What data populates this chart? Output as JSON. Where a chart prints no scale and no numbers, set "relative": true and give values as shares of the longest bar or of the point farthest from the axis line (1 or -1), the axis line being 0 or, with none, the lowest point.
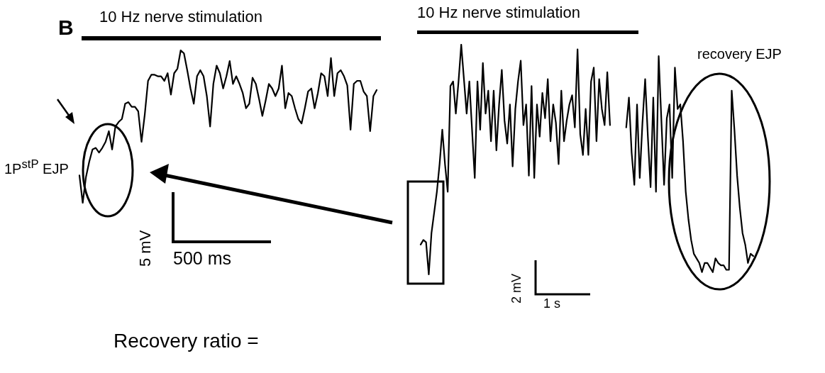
{
  "chart_data": [
    {
      "type": "line",
      "relative": true,
      "tick_labels": false,
      "marker": "none",
      "line_style": "solid",
      "annotations": [
        "B",
        "10 Hz nerve stimulation",
        "1P$^{stP}$ EJP",
        "5 mV",
        "500 ms",
        "Recovery ratio ="
      ],
      "categories": [
        null,
        null,
        null,
        null,
        null,
        null,
        null,
        null,
        null,
        null,
        null,
        null,
        null,
        null,
        null,
        null,
        null,
        null,
        null,
        null,
        null,
        null,
        null,
        null,
        null,
        null,
        null,
        null,
        null,
        null,
        null,
        null,
        null,
        null,
        null,
        null,
        null,
        null,
        null,
        null,
        null,
        null,
        null,
        null,
        null,
        null,
        null,
        null,
        null,
        null,
        null,
        null,
        null,
        null,
        null,
        null,
        null,
        null,
        null,
        null,
        null,
        null,
        null,
        null,
        null,
        null,
        null,
        null,
        null,
        null,
        null,
        null,
        null,
        null,
        null,
        null,
        null,
        null,
        null,
        null,
        null,
        null,
        null,
        null,
        null,
        null,
        null,
        null,
        null,
        null,
        null,
        null
      ],
      "series": [
        {
          "color": "#000000",
          "values": [
            0.18,
            0,
            0.17,
            0.27,
            0.35,
            0.36,
            0.33,
            0.36,
            0.4,
            0.47,
            0.35,
            0.5,
            0.53,
            0.55,
            0.65,
            0.66,
            0.63,
            0.63,
            0.6,
            0.4,
            0.58,
            0.8,
            0.84,
            0.84,
            0.83,
            0.83,
            0.8,
            0.85,
            0.71,
            0.85,
            0.88,
            1,
            0.98,
            0.87,
            0.75,
            0.65,
            0.83,
            0.87,
            0.83,
            0.7,
            0.5,
            0.78,
            0.9,
            0.85,
            0.75,
            0.83,
            0.93,
            0.78,
            0.83,
            0.78,
            0.72,
            0.62,
            0.65,
            0.82,
            0.78,
            0.68,
            0.57,
            0.67,
            0.78,
            0.75,
            0.7,
            0.75,
            0.9,
            0.62,
            0.72,
            0.7,
            0.62,
            0.55,
            0.52,
            0.62,
            0.73,
            0.75,
            0.62,
            0.72,
            0.85,
            0.83,
            0.7,
            0.95,
            0.7,
            0.85,
            0.87,
            0.83,
            0.77,
            0.48,
            0.78,
            0.8,
            0.8,
            0.73,
            0.7,
            0.47,
            0.7,
            0.74
          ]
        }
      ]
    },
    {
      "type": "line",
      "relative": true,
      "tick_labels": false,
      "marker": "none",
      "line_style": "solid",
      "annotations": [
        "10 Hz nerve stimulation",
        "recovery EJP",
        "2 mV",
        "1 s"
      ],
      "categories": [
        null,
        null,
        null,
        null,
        null,
        null,
        null,
        null,
        null,
        null,
        null,
        null,
        null,
        null,
        null,
        null,
        null,
        null,
        null,
        null,
        null,
        null,
        null,
        null,
        null,
        null,
        null,
        null,
        null,
        null,
        null,
        null,
        null,
        null,
        null,
        null,
        null,
        null,
        null,
        null,
        null,
        null,
        null,
        null,
        null,
        null,
        null,
        null,
        null,
        null,
        null,
        null,
        null,
        null,
        null,
        null,
        null,
        null,
        null,
        null,
        null,
        null,
        null,
        null,
        null,
        null,
        null,
        null,
        null,
        null,
        null,
        null,
        null,
        null,
        null,
        null,
        null,
        null,
        null,
        null,
        null,
        null,
        null,
        null,
        null,
        null,
        null,
        null,
        null,
        null,
        null,
        null,
        null,
        null,
        null,
        null,
        null,
        null,
        null,
        null,
        null,
        null,
        null,
        null,
        null,
        null,
        null,
        null,
        null,
        null,
        null,
        null,
        null,
        null,
        null,
        null,
        null,
        null,
        null,
        null,
        null,
        null,
        null,
        null
      ],
      "series": [
        {
          "color": "#000000",
          "values": [
            0.13,
            0.15,
            0.14,
            0,
            0.18,
            0.27,
            0.36,
            0.48,
            0.63,
            0.48,
            0.36,
            0.82,
            0.84,
            0.7,
            0.84,
            1,
            0.85,
            0.7,
            0.84,
            0.63,
            0.42,
            0.84,
            0.63,
            0.92,
            0.7,
            0.8,
            0.58,
            0.8,
            0.54,
            0.74,
            0.89,
            0.67,
            0.57,
            0.74,
            0.47,
            0.72,
            0.84,
            0.93,
            0.65,
            0.74,
            0.43,
            0.82,
            0.42,
            0.74,
            0.6,
            0.79,
            0.68,
            0.85,
            0.58,
            0.74,
            0.66,
            0.48,
            0.8,
            0.58,
            0.67,
            0.74,
            0.78,
            0.64,
            0.98,
            0.61,
            0.52,
            0.72,
            0.52,
            0.84,
            0.9,
            0.58,
            0.85,
            0.72,
            0.65,
            0.88,
            0.65,
            null,
            null,
            null,
            null,
            null,
            null,
            null,
            null,
            null,
            null,
            null,
            null,
            null,
            null,
            null,
            null,
            null,
            null,
            null,
            null,
            null,
            null,
            null,
            null,
            null,
            null,
            null,
            null,
            null,
            null,
            null,
            null,
            null,
            null,
            null,
            null,
            null,
            null,
            null,
            null,
            null,
            null,
            null,
            null,
            null,
            null,
            null,
            null,
            null,
            null,
            null,
            null,
            null
          ]
        },
        {
          "color": "#000000",
          "values": [
            null,
            null,
            null,
            null,
            null,
            null,
            null,
            null,
            null,
            null,
            null,
            null,
            null,
            null,
            null,
            null,
            null,
            null,
            null,
            null,
            null,
            null,
            null,
            null,
            null,
            null,
            null,
            null,
            null,
            null,
            null,
            null,
            null,
            null,
            null,
            null,
            null,
            null,
            null,
            null,
            null,
            null,
            null,
            null,
            null,
            null,
            null,
            null,
            null,
            null,
            null,
            null,
            null,
            null,
            null,
            null,
            null,
            null,
            null,
            null,
            null,
            null,
            null,
            null,
            null,
            null,
            null,
            null,
            null,
            null,
            null,
            null,
            null,
            null,
            null,
            null,
            0.64,
            0.77,
            0.53,
            0.39,
            0.74,
            0.42,
            0.66,
            0.85,
            0.6,
            0.38,
            0.77,
            0.36,
            0.95,
            0.67,
            0.39,
            0.68,
            0.74,
            0.42,
            0.9,
            0.72,
            0.74,
            0.58,
            0.36,
            0.24,
            0.15,
            0.09,
            0.07,
            0.05,
            0.01,
            0.05,
            0.05,
            0.03,
            0.01,
            0.07,
            0.05,
            0.04,
            0.04,
            0.02,
            0.02,
            0.8,
            0.63,
            0.43,
            0.29,
            0.18,
            0.13,
            0.05,
            0.09,
            0.08
          ]
        }
      ]
    }
  ]
}
